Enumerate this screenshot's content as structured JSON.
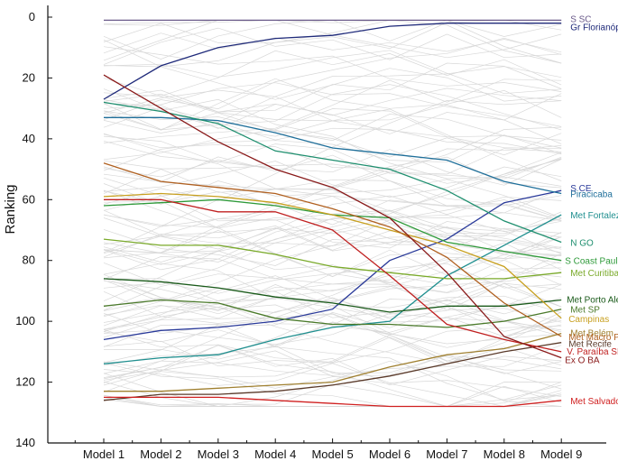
{
  "chart_data": {
    "type": "line",
    "title": "",
    "xlabel": "",
    "ylabel": "Ranking",
    "ylim": [
      0,
      140
    ],
    "y_inverted": true,
    "y_ticks": [
      0,
      20,
      40,
      60,
      80,
      100,
      120,
      140
    ],
    "categories": [
      "Model 1",
      "Model 2",
      "Model 3",
      "Model 4",
      "Model 5",
      "Model 6",
      "Model 7",
      "Model 8",
      "Model 9"
    ],
    "background_lines": "light-gray",
    "series": [
      {
        "name": "S SC",
        "color": "#6a5a8a",
        "values": [
          1,
          1,
          1,
          1,
          1,
          1,
          1,
          1,
          1
        ]
      },
      {
        "name": "Gr Florianópolis",
        "color": "#1f2a7a",
        "values": [
          27,
          16,
          10,
          7,
          6,
          3,
          2,
          2,
          2
        ]
      },
      {
        "name": "S CE",
        "color": "#2a3a9a",
        "values": [
          106,
          103,
          102,
          100,
          96,
          80,
          73,
          61,
          57
        ]
      },
      {
        "name": "Piracicaba",
        "color": "#1f6f9a",
        "values": [
          33,
          33,
          34,
          38,
          43,
          45,
          47,
          54,
          58
        ]
      },
      {
        "name": "Met Fortaleza",
        "color": "#1f8f8f",
        "values": [
          114,
          112,
          111,
          106,
          102,
          100,
          85,
          75,
          65
        ]
      },
      {
        "name": "N GO",
        "color": "#1f8f6f",
        "values": [
          28,
          31,
          35,
          44,
          47,
          50,
          57,
          67,
          74
        ]
      },
      {
        "name": "S Coast Paulista",
        "color": "#2f9a3a",
        "values": [
          62,
          61,
          60,
          62,
          65,
          66,
          74,
          77,
          80
        ]
      },
      {
        "name": "Met Curitiba",
        "color": "#7aaa2a",
        "values": [
          73,
          75,
          75,
          78,
          82,
          84,
          86,
          86,
          84
        ]
      },
      {
        "name": "Met Porto Alegre",
        "color": "#1a5a1a",
        "values": [
          86,
          87,
          89,
          92,
          94,
          97,
          95,
          95,
          93
        ]
      },
      {
        "name": "Met SP",
        "color": "#4a7a2a",
        "values": [
          95,
          93,
          94,
          99,
          101,
          101,
          102,
          100,
          96
        ]
      },
      {
        "name": "Campinas",
        "color": "#c8a020",
        "values": [
          59,
          58,
          59,
          61,
          65,
          70,
          75,
          82,
          99
        ]
      },
      {
        "name": "Met Belém",
        "color": "#a08030",
        "values": [
          123,
          123,
          122,
          121,
          120,
          115,
          111,
          109,
          104
        ]
      },
      {
        "name": "Met Macro Paulista",
        "color": "#b06020",
        "values": [
          48,
          54,
          56,
          58,
          63,
          69,
          79,
          94,
          105
        ]
      },
      {
        "name": "Met Recife",
        "color": "#5a3a2a",
        "values": [
          126,
          124,
          124,
          123,
          121,
          118,
          114,
          110,
          107
        ]
      },
      {
        "name": "V. Paraíba SP",
        "color": "#c02020",
        "values": [
          60,
          60,
          64,
          64,
          70,
          85,
          101,
          106,
          110
        ]
      },
      {
        "name": "Ex O BA",
        "color": "#8a1a1a",
        "values": [
          19,
          30,
          41,
          50,
          56,
          66,
          84,
          105,
          112
        ]
      },
      {
        "name": "Met Salvador",
        "color": "#d02020",
        "values": [
          125,
          125,
          125,
          126,
          127,
          128,
          128,
          128,
          126
        ]
      }
    ]
  }
}
